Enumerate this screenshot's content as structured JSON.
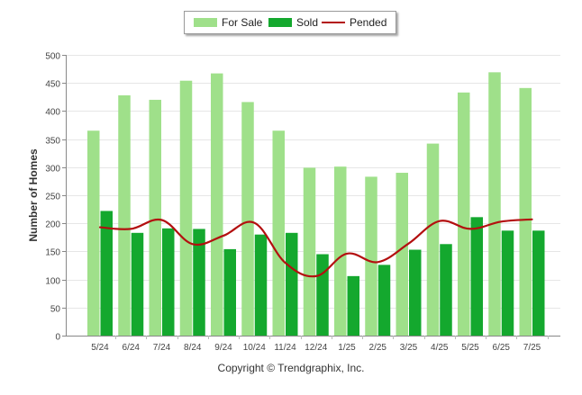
{
  "chart_data": {
    "type": "bar",
    "title": "",
    "xlabel": "",
    "ylabel": "Number of Homes",
    "ylim": [
      0,
      500
    ],
    "yticks": [
      0,
      50,
      100,
      150,
      200,
      250,
      300,
      350,
      400,
      450,
      500
    ],
    "grid": true,
    "legend_position": "top-center",
    "categories": [
      "5/24",
      "6/24",
      "7/24",
      "8/24",
      "9/24",
      "10/24",
      "11/24",
      "12/24",
      "1/25",
      "2/25",
      "3/25",
      "4/25",
      "5/25",
      "6/25",
      "7/25"
    ],
    "series": [
      {
        "name": "For Sale",
        "type": "bar",
        "color": "#9fe08a",
        "values": [
          365,
          428,
          420,
          454,
          467,
          416,
          365,
          299,
          301,
          283,
          290,
          342,
          433,
          469,
          441
        ]
      },
      {
        "name": "Sold",
        "type": "bar",
        "color": "#14a82e",
        "values": [
          222,
          183,
          191,
          190,
          154,
          180,
          183,
          145,
          106,
          126,
          153,
          163,
          211,
          187,
          187
        ]
      },
      {
        "name": "Pended",
        "type": "line",
        "color": "#b30f0f",
        "values": [
          193,
          190,
          206,
          163,
          178,
          201,
          130,
          106,
          146,
          131,
          164,
          204,
          190,
          203,
          207
        ]
      }
    ]
  },
  "footer": {
    "copyright": "Copyright © Trendgraphix, Inc."
  }
}
